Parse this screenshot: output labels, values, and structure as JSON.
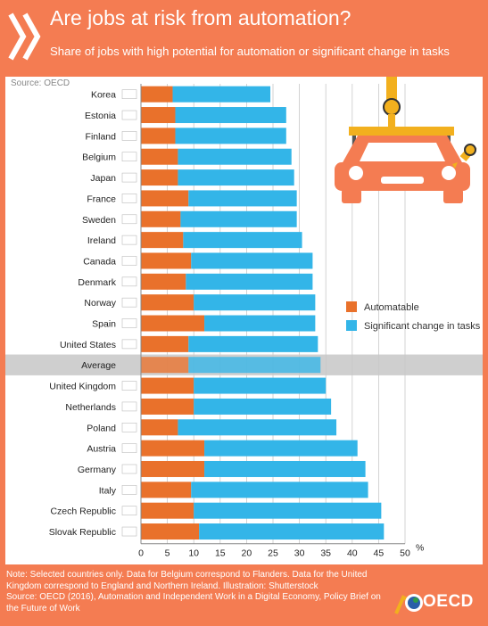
{
  "header": {
    "title": "Are jobs at risk from automation?",
    "subtitle": "Share of jobs with high potential for automation or significant change in tasks"
  },
  "source_top": "Source: OECD",
  "colors": {
    "background": "#f47c52",
    "automatable": "#e9712b",
    "significant": "#33b5e8",
    "average_band": "#cfcfcf"
  },
  "chart_data": {
    "type": "bar",
    "orientation": "horizontal",
    "stacked": true,
    "categories": [
      "Korea",
      "Estonia",
      "Finland",
      "Belgium",
      "Japan",
      "France",
      "Sweden",
      "Ireland",
      "Canada",
      "Denmark",
      "Norway",
      "Spain",
      "United States",
      "Average",
      "United Kingdom",
      "Netherlands",
      "Poland",
      "Austria",
      "Germany",
      "Italy",
      "Czech Republic",
      "Slovak Republic"
    ],
    "series": [
      {
        "name": "Automatable",
        "values": [
          6,
          6.5,
          6.5,
          7,
          7,
          9,
          7.5,
          8,
          9.5,
          8.5,
          10,
          12,
          9,
          9,
          10,
          10,
          7,
          12,
          12,
          9.5,
          10,
          11
        ]
      },
      {
        "name": "Significant change in tasks",
        "values": [
          18.5,
          21,
          21,
          21.5,
          22,
          20.5,
          22,
          22.5,
          23,
          24,
          23,
          21,
          24.5,
          25,
          25,
          26,
          30,
          29,
          30.5,
          33.5,
          35.5,
          35
        ]
      }
    ],
    "xlim": [
      0,
      50
    ],
    "xticks": [
      0,
      5,
      10,
      15,
      20,
      25,
      30,
      35,
      40,
      45,
      50
    ],
    "xunit": "%",
    "highlight": "Average",
    "legend_position": "right"
  },
  "notes": [
    "Note: Selected countries only. Data for Belgium correspond to Flanders. Data for the United Kingdom correspond to England and Northern Ireland. Illustration: Shutterstock",
    "Source: OECD (2016), Automation and Independent Work in a Digital Economy, Policy Brief on the Future of Work"
  ],
  "logo": {
    "text": "OECD"
  },
  "illustration": {
    "name": "robot-arms-car-illustration"
  }
}
